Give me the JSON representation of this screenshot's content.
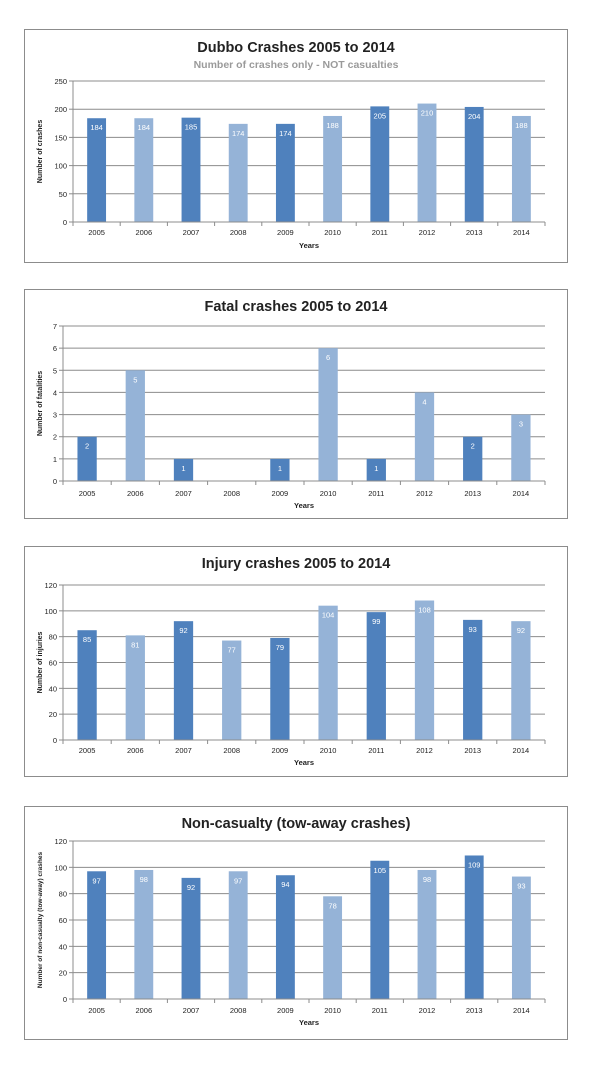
{
  "chart_data": [
    {
      "type": "bar",
      "title": "Dubbo Crashes 2005 to 2014",
      "subtitle": "Number of crashes only - NOT casualties",
      "xlabel": "Years",
      "ylabel": "Number of crashes",
      "categories": [
        "2005",
        "2006",
        "2007",
        "2008",
        "2009",
        "2010",
        "2011",
        "2012",
        "2013",
        "2014"
      ],
      "values": [
        184,
        184,
        185,
        174,
        174,
        188,
        205,
        210,
        204,
        188
      ],
      "data_labels": [
        "184",
        "184",
        "185",
        "174",
        "174",
        "188",
        "205",
        "210",
        "204",
        "188"
      ],
      "ylim": [
        0,
        250
      ],
      "yticks": [
        "0",
        "50",
        "100",
        "150",
        "200",
        "250"
      ],
      "grid": true,
      "legend": "none",
      "bar_colors": [
        "#4f81bd",
        "#95b3d7",
        "#4f81bd",
        "#95b3d7",
        "#4f81bd",
        "#95b3d7",
        "#4f81bd",
        "#95b3d7",
        "#4f81bd",
        "#95b3d7"
      ]
    },
    {
      "type": "bar",
      "title": "Fatal crashes 2005 to 2014",
      "xlabel": "Years",
      "ylabel": "Number of fatalities",
      "categories": [
        "2005",
        "2006",
        "2007",
        "2008",
        "2009",
        "2010",
        "2011",
        "2012",
        "2013",
        "2014"
      ],
      "values": [
        2,
        5,
        1,
        0,
        1,
        6,
        1,
        4,
        2,
        3
      ],
      "data_labels": [
        "2",
        "5",
        "1",
        "",
        "1",
        "6",
        "1",
        "4",
        "2",
        "3"
      ],
      "ylim": [
        0,
        7
      ],
      "yticks": [
        "0",
        "1",
        "2",
        "3",
        "4",
        "5",
        "6",
        "7"
      ],
      "grid": true,
      "legend": "none",
      "bar_colors": [
        "#4f81bd",
        "#95b3d7",
        "#4f81bd",
        "#95b3d7",
        "#4f81bd",
        "#95b3d7",
        "#4f81bd",
        "#95b3d7",
        "#4f81bd",
        "#95b3d7"
      ]
    },
    {
      "type": "bar",
      "title": "Injury crashes 2005 to 2014",
      "xlabel": "Years",
      "ylabel": "Number of injuries",
      "categories": [
        "2005",
        "2006",
        "2007",
        "2008",
        "2009",
        "2010",
        "2011",
        "2012",
        "2013",
        "2014"
      ],
      "values": [
        85,
        81,
        92,
        77,
        79,
        104,
        99,
        108,
        93,
        92
      ],
      "data_labels": [
        "85",
        "81",
        "92",
        "77",
        "79",
        "104",
        "99",
        "108",
        "93",
        "92"
      ],
      "ylim": [
        0,
        120
      ],
      "yticks": [
        "0",
        "20",
        "40",
        "60",
        "80",
        "100",
        "120"
      ],
      "grid": true,
      "legend": "none",
      "bar_colors": [
        "#4f81bd",
        "#95b3d7",
        "#4f81bd",
        "#95b3d7",
        "#4f81bd",
        "#95b3d7",
        "#4f81bd",
        "#95b3d7",
        "#4f81bd",
        "#95b3d7"
      ]
    },
    {
      "type": "bar",
      "title": "Non-casualty (tow-away crashes)",
      "xlabel": "Years",
      "ylabel": "Number of non-casualty  (tow-away)  crashes",
      "categories": [
        "2005",
        "2006",
        "2007",
        "2008",
        "2009",
        "2010",
        "2011",
        "2012",
        "2013",
        "2014"
      ],
      "values": [
        97,
        98,
        92,
        97,
        94,
        78,
        105,
        98,
        109,
        93
      ],
      "data_labels": [
        "97",
        "98",
        "92",
        "97",
        "94",
        "78",
        "105",
        "98",
        "109",
        "93"
      ],
      "ylim": [
        0,
        120
      ],
      "yticks": [
        "0",
        "20",
        "40",
        "60",
        "80",
        "100",
        "120"
      ],
      "grid": true,
      "legend": "none",
      "bar_colors": [
        "#4f81bd",
        "#95b3d7",
        "#4f81bd",
        "#95b3d7",
        "#4f81bd",
        "#95b3d7",
        "#4f81bd",
        "#95b3d7",
        "#4f81bd",
        "#95b3d7"
      ]
    }
  ]
}
